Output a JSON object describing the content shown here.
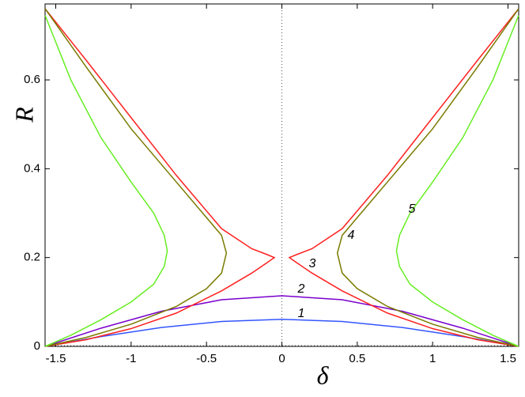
{
  "chart_data": {
    "type": "line",
    "xlabel": "δ",
    "ylabel": "R",
    "xlim": [
      -1.5708,
      1.5708
    ],
    "ylim": [
      0,
      0.771
    ],
    "xticks": [
      -1.5,
      -1,
      -0.5,
      0,
      0.5,
      1,
      1.5
    ],
    "yticks": [
      0,
      0.2,
      0.4,
      0.6
    ],
    "series": [
      {
        "name": "1",
        "color": "#3355ff",
        "x": [
          -1.57,
          -1.2,
          -0.8,
          -0.4,
          0,
          0.4,
          0.8,
          1.2,
          1.57
        ],
        "values": [
          0,
          0.022,
          0.0425,
          0.056,
          0.061,
          0.056,
          0.0425,
          0.022,
          0
        ]
      },
      {
        "name": "2",
        "color": "#7a00cc",
        "x": [
          -1.57,
          -1.2,
          -0.8,
          -0.4,
          0,
          0.4,
          0.8,
          1.2,
          1.57
        ],
        "values": [
          0,
          0.041,
          0.079,
          0.105,
          0.114,
          0.105,
          0.079,
          0.041,
          0
        ]
      },
      {
        "name": "3",
        "color": "#ff2020",
        "x": [
          -1.57,
          -1.3,
          -1.0,
          -0.7,
          -0.4,
          -0.2,
          -0.1,
          -0.05,
          -0.1,
          -0.2,
          -0.4,
          -0.7,
          -1.0,
          -1.3,
          -1.57,
          null,
          1.57,
          1.3,
          1.0,
          0.7,
          0.4,
          0.2,
          0.1,
          0.05,
          0.1,
          0.2,
          0.4,
          0.7,
          1.0,
          1.3,
          1.57
        ],
        "values": [
          0.76,
          0.645,
          0.515,
          0.385,
          0.265,
          0.22,
          0.207,
          0.2,
          0.188,
          0.165,
          0.125,
          0.075,
          0.04,
          0.015,
          0,
          null,
          0.76,
          0.645,
          0.515,
          0.385,
          0.265,
          0.22,
          0.207,
          0.2,
          0.188,
          0.165,
          0.125,
          0.075,
          0.04,
          0.015,
          0
        ]
      },
      {
        "name": "4",
        "color": "#7a7a00",
        "x": [
          -1.57,
          -1.3,
          -1.0,
          -0.7,
          -0.5,
          -0.4,
          -0.368,
          -0.4,
          -0.5,
          -0.7,
          -1.0,
          -1.3,
          -1.57,
          null,
          1.57,
          1.3,
          1.0,
          0.7,
          0.5,
          0.4,
          0.368,
          0.4,
          0.5,
          0.7,
          1.0,
          1.3,
          1.57
        ],
        "values": [
          0.76,
          0.63,
          0.49,
          0.37,
          0.29,
          0.25,
          0.21,
          0.165,
          0.13,
          0.09,
          0.05,
          0.02,
          0,
          null,
          0.76,
          0.63,
          0.49,
          0.37,
          0.29,
          0.25,
          0.21,
          0.165,
          0.13,
          0.09,
          0.05,
          0.02,
          0
        ]
      },
      {
        "name": "5",
        "color": "#66ee22",
        "x": [
          -1.57,
          -1.4,
          -1.2,
          -1.0,
          -0.85,
          -0.78,
          -0.76,
          -0.78,
          -0.85,
          -1.0,
          -1.2,
          -1.4,
          -1.57,
          null,
          1.57,
          1.4,
          1.2,
          1.0,
          0.85,
          0.78,
          0.76,
          0.78,
          0.85,
          1.0,
          1.2,
          1.4,
          1.57
        ],
        "values": [
          0.745,
          0.6,
          0.47,
          0.37,
          0.3,
          0.25,
          0.215,
          0.18,
          0.14,
          0.1,
          0.06,
          0.025,
          0,
          null,
          0.745,
          0.6,
          0.47,
          0.37,
          0.3,
          0.25,
          0.215,
          0.18,
          0.14,
          0.1,
          0.06,
          0.025,
          0
        ]
      }
    ]
  }
}
